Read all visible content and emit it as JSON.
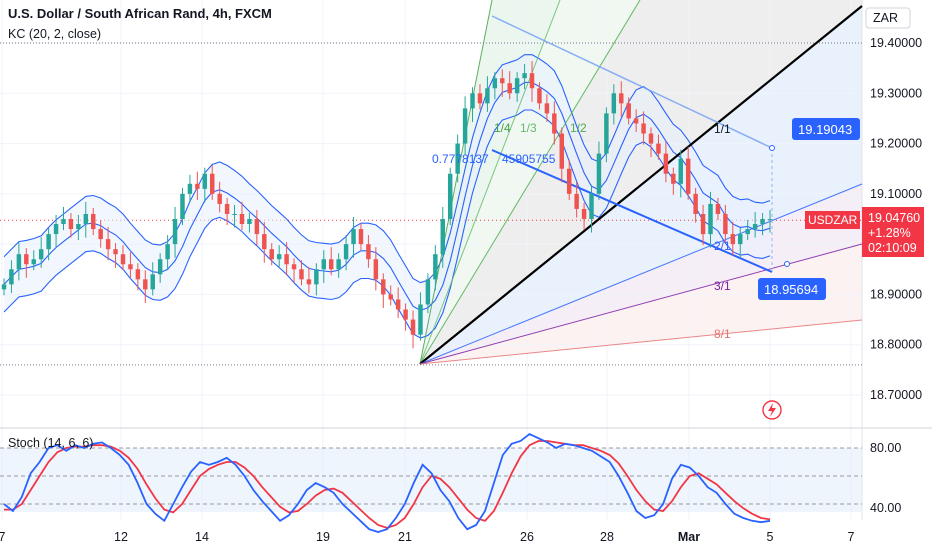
{
  "header": {
    "title": "U.S. Dollar / South African Rand, 4h, FXCM",
    "indicator": "KC (20, 2, close)",
    "currency": "ZAR"
  },
  "price_tags": {
    "symbol": "USDZAR",
    "last": "19.04760",
    "change": "+1.28%",
    "countdown": "02:10:09",
    "upper_callout": "19.19043",
    "lower_callout": "18.95694"
  },
  "fan_labels": {
    "top_fib": "0.7778137",
    "top_fib2": "45905755",
    "r1_4": "1/4",
    "r1_3": "1/3",
    "r1_2": "1/2",
    "r1_1": "1/1",
    "r2_1": "2/1",
    "r3_1": "3/1",
    "r8_1": "8/1"
  },
  "stoch_panel": {
    "label": "Stoch (14, 6, 6)",
    "levels": [
      "80.00",
      "40.00"
    ]
  },
  "colors": {
    "up": "#26a69a",
    "down": "#ef5350",
    "kc_line": "#2962ff",
    "kc_fill": "#e8f1fd",
    "price_tag": "#f23645",
    "callout": "#2962ff",
    "stoch_k": "#2962ff",
    "stoch_d": "#f23645"
  },
  "chart_data": {
    "type": "candlestick",
    "timeframe": "4h",
    "y_axis": {
      "ticks": [
        "19.40000",
        "19.30000",
        "19.20000",
        "19.10000",
        "19.00000",
        "18.90000",
        "18.80000",
        "18.70000"
      ],
      "range": [
        18.66,
        19.43
      ]
    },
    "x_axis": {
      "ticks": [
        "7",
        "12",
        "14",
        "19",
        "21",
        "26",
        "28",
        "Mar",
        "5",
        "7"
      ]
    },
    "reference_levels": {
      "high_dotted": 19.4,
      "low_dotted": 18.76,
      "current_price": 19.0476
    },
    "close_series": [
      18.92,
      18.95,
      18.98,
      18.96,
      18.97,
      18.99,
      19.02,
      19.04,
      19.05,
      19.03,
      19.04,
      19.06,
      19.03,
      19.01,
      18.99,
      18.98,
      18.96,
      18.95,
      18.93,
      18.91,
      18.94,
      18.97,
      19.0,
      19.05,
      19.1,
      19.12,
      19.11,
      19.14,
      19.1,
      19.08,
      19.06,
      19.06,
      19.04,
      19.05,
      19.02,
      18.99,
      18.97,
      18.98,
      18.96,
      18.95,
      18.93,
      18.92,
      18.95,
      18.97,
      18.95,
      18.97,
      19.0,
      19.03,
      19.0,
      18.97,
      18.93,
      18.9,
      18.89,
      18.87,
      18.85,
      18.82,
      18.88,
      18.93,
      18.98,
      19.05,
      19.14,
      19.2,
      19.27,
      19.3,
      19.28,
      19.31,
      19.33,
      19.32,
      19.3,
      19.33,
      19.34,
      19.31,
      19.28,
      19.26,
      19.22,
      19.15,
      19.1,
      19.07,
      19.05,
      19.1,
      19.18,
      19.26,
      19.3,
      19.28,
      19.25,
      19.24,
      19.22,
      19.2,
      19.18,
      19.14,
      19.12,
      19.17,
      19.1,
      19.06,
      19.02,
      19.08,
      19.06,
      19.02,
      19.0,
      19.02,
      19.03,
      19.04,
      19.05,
      19.05
    ]
  },
  "stoch_data": {
    "type": "line",
    "levels": [
      80,
      60,
      40
    ],
    "k": [
      40,
      35,
      45,
      62,
      70,
      80,
      82,
      78,
      82,
      80,
      83,
      84,
      80,
      75,
      68,
      55,
      40,
      33,
      28,
      40,
      52,
      63,
      70,
      68,
      70,
      73,
      68,
      60,
      50,
      42,
      35,
      28,
      32,
      40,
      50,
      55,
      52,
      48,
      40,
      34,
      28,
      22,
      20,
      22,
      30,
      40,
      55,
      68,
      62,
      50,
      42,
      30,
      22,
      25,
      35,
      55,
      75,
      83,
      85,
      90,
      87,
      84,
      80,
      83,
      82,
      80,
      78,
      74,
      70,
      60,
      48,
      35,
      30,
      32,
      40,
      58,
      68,
      66,
      60,
      52,
      48,
      40,
      33,
      30,
      28,
      27,
      28
    ],
    "d": [
      36,
      36,
      40,
      50,
      60,
      70,
      77,
      80,
      81,
      81,
      82,
      82,
      81,
      78,
      73,
      65,
      54,
      44,
      36,
      34,
      40,
      50,
      60,
      65,
      68,
      70,
      70,
      66,
      60,
      52,
      45,
      38,
      34,
      35,
      40,
      46,
      50,
      51,
      48,
      42,
      36,
      30,
      25,
      23,
      25,
      30,
      40,
      52,
      60,
      58,
      52,
      44,
      36,
      30,
      28,
      35,
      48,
      62,
      74,
      82,
      85,
      85,
      84,
      83,
      82,
      82,
      80,
      78,
      75,
      69,
      60,
      50,
      42,
      36,
      35,
      42,
      52,
      60,
      62,
      58,
      54,
      48,
      42,
      37,
      33,
      30,
      29
    ]
  }
}
